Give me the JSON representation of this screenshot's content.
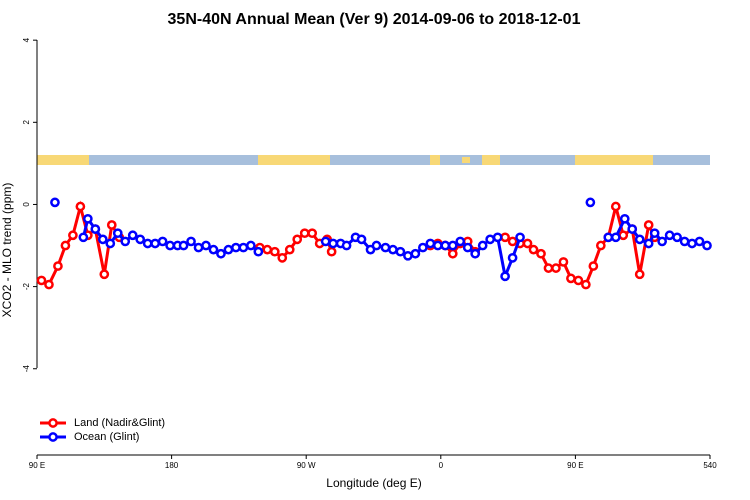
{
  "chart_data": {
    "type": "line",
    "title": "35N-40N Annual Mean (Ver 9)   2014-09-06 to 2018-12-01",
    "x_label": "Longitude (deg E)",
    "y_label": "XCO2 - MLO trend (ppm)",
    "xlim": [
      90,
      540
    ],
    "xticks": [
      {
        "value": 90,
        "label": "90 E"
      },
      180,
      {
        "value": 270,
        "label": "90 W"
      },
      {
        "value": 360,
        "label": "0"
      },
      {
        "value": 450,
        "label": "90 E"
      },
      540
    ],
    "ylim": [
      -6.1,
      4.15
    ],
    "yticks": [
      -4,
      -2,
      0,
      2,
      4
    ],
    "legend": "bottom-left",
    "series": [
      {
        "name": "Land (Nadir&Glint)",
        "color": "#ff0000",
        "x": [
          93,
          98,
          104,
          109,
          114,
          119,
          124,
          129,
          135,
          140,
          145,
          150,
          239,
          244,
          249,
          254,
          259,
          264,
          269,
          274,
          279,
          284,
          287,
          292,
          353,
          358,
          363,
          368,
          373,
          378,
          383,
          388,
          403,
          408,
          413,
          418,
          422,
          427,
          432,
          437,
          442,
          447,
          452,
          457,
          462,
          467,
          472,
          477,
          482,
          488,
          493,
          499,
          503
        ],
        "values": [
          -1.85,
          -1.95,
          -1.5,
          -1.0,
          -0.75,
          -0.05,
          -0.75,
          -0.6,
          -1.7,
          -0.5,
          -0.8,
          null,
          -1.05,
          -1.1,
          -1.15,
          -1.3,
          -1.1,
          -0.85,
          -0.7,
          -0.7,
          -0.95,
          -0.85,
          -1.15,
          null,
          -1.0,
          -0.95,
          -1.0,
          -1.2,
          -0.95,
          -0.9,
          -1.15,
          null,
          -0.8,
          -0.9,
          -0.95,
          -0.95,
          -1.1,
          -1.2,
          -1.55,
          -1.55,
          -1.4,
          -1.8,
          -1.85,
          -1.95,
          -1.5,
          -1.0,
          -0.8,
          -0.05,
          -0.75,
          -0.6,
          -1.7,
          -0.5,
          -0.8
        ]
      },
      {
        "name": "Ocean (Glint)",
        "color": "#0000ff",
        "x": [
          102,
          110,
          121,
          124,
          129,
          134,
          139,
          144,
          149,
          154,
          159,
          164,
          169,
          174,
          179,
          184,
          188,
          193,
          198,
          203,
          208,
          213,
          218,
          223,
          228,
          233,
          238,
          260,
          283,
          288,
          293,
          297,
          303,
          307,
          313,
          317,
          323,
          328,
          333,
          338,
          343,
          348,
          353,
          358,
          363,
          368,
          373,
          378,
          383,
          388,
          393,
          398,
          403,
          408,
          413,
          420,
          460,
          465,
          472,
          477,
          483,
          488,
          493,
          499,
          503,
          508,
          513,
          518,
          523,
          528,
          533,
          538
        ],
        "values": [
          0.05,
          null,
          -0.8,
          -0.35,
          -0.6,
          -0.85,
          -0.95,
          -0.7,
          -0.9,
          -0.75,
          -0.85,
          -0.95,
          -0.95,
          -0.9,
          -1.0,
          -1.0,
          -1.0,
          -0.9,
          -1.05,
          -1.0,
          -1.1,
          -1.2,
          -1.1,
          -1.05,
          -1.05,
          -1.0,
          -1.15,
          null,
          -0.9,
          -0.95,
          -0.95,
          -1.0,
          -0.8,
          -0.85,
          -1.1,
          -1.0,
          -1.05,
          -1.1,
          -1.15,
          -1.25,
          -1.2,
          -1.05,
          -0.95,
          -1.0,
          -1.0,
          -1.0,
          -0.9,
          -1.05,
          -1.2,
          -1.0,
          -0.85,
          -0.8,
          -1.75,
          -1.3,
          -0.8,
          null,
          0.05,
          null,
          -0.8,
          -0.8,
          -0.35,
          -0.6,
          -0.85,
          -0.95,
          -0.7,
          -0.9,
          -0.75,
          -0.8,
          -0.9,
          -0.95,
          -0.9,
          -1.0
        ]
      }
    ]
  }
}
